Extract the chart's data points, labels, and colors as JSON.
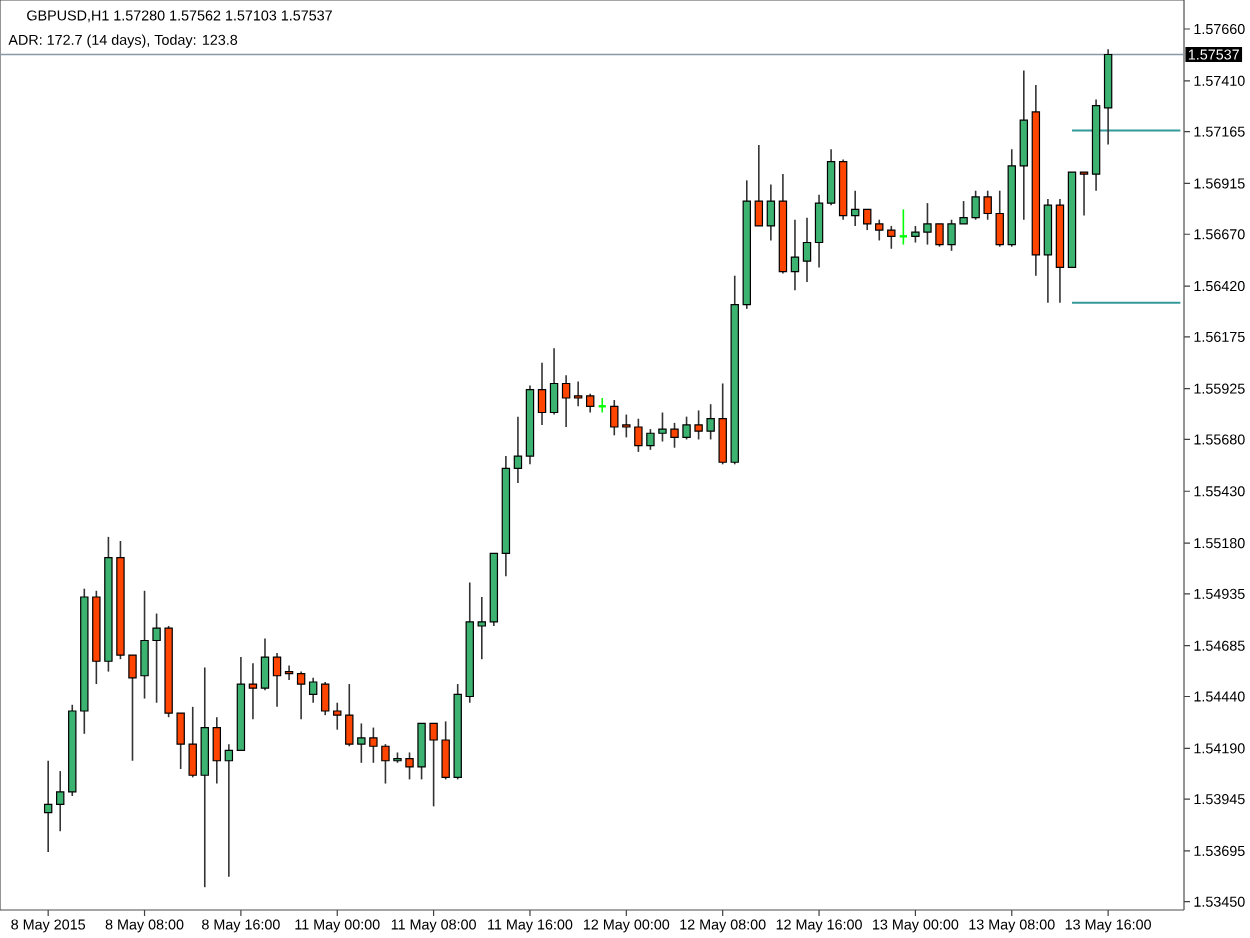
{
  "chart_data": {
    "type": "candlestick",
    "title": "GBPUSD,H1 1.57280 1.57562 1.57103 1.57537",
    "annotations": [
      "ADR: 172.7 (14 days), Today: 123.8"
    ],
    "categories": [
      "8 May 2015",
      null,
      null,
      null,
      null,
      null,
      null,
      null,
      "8 May 08:00",
      null,
      null,
      null,
      null,
      null,
      null,
      null,
      "8 May 16:00",
      null,
      null,
      null,
      null,
      null,
      null,
      null,
      "11 May 00:00",
      null,
      null,
      null,
      null,
      null,
      null,
      null,
      "11 May 08:00",
      null,
      null,
      null,
      null,
      null,
      null,
      null,
      "11 May 16:00",
      null,
      null,
      null,
      null,
      null,
      null,
      null,
      "12 May 00:00",
      null,
      null,
      null,
      null,
      null,
      null,
      null,
      "12 May 08:00",
      null,
      null,
      null,
      null,
      null,
      null,
      null,
      "12 May 16:00",
      null,
      null,
      null,
      null,
      null,
      null,
      null,
      "13 May 00:00",
      null,
      null,
      null,
      null,
      null,
      null,
      null,
      "13 May 08:00",
      null,
      null,
      null,
      null,
      null,
      null,
      null,
      "13 May 16:00",
      null,
      null,
      null,
      null,
      null,
      null
    ],
    "ohlc": [
      [
        1.5388,
        1.5413,
        1.5369,
        1.5392
      ],
      [
        1.5392,
        1.5408,
        1.5379,
        1.5398
      ],
      [
        1.5398,
        1.544,
        1.5396,
        1.5437
      ],
      [
        1.5437,
        1.5496,
        1.5426,
        1.5492
      ],
      [
        1.5492,
        1.5495,
        1.545,
        1.5461
      ],
      [
        1.5461,
        1.5521,
        1.5456,
        1.5511
      ],
      [
        1.5511,
        1.5519,
        1.5462,
        1.5464
      ],
      [
        1.5464,
        1.5464,
        1.5413,
        1.5453
      ],
      [
        1.5454,
        1.5495,
        1.5443,
        1.5471
      ],
      [
        1.5471,
        1.5484,
        1.5441,
        1.5477
      ],
      [
        1.5477,
        1.5478,
        1.5434,
        1.5436
      ],
      [
        1.5436,
        1.5436,
        1.5409,
        1.5421
      ],
      [
        1.5421,
        1.5439,
        1.5405,
        1.5406
      ],
      [
        1.5406,
        1.5458,
        1.5352,
        1.5429
      ],
      [
        1.5429,
        1.5434,
        1.5402,
        1.5413
      ],
      [
        1.5413,
        1.5421,
        1.5357,
        1.5418
      ],
      [
        1.5418,
        1.5463,
        1.5418,
        1.545
      ],
      [
        1.545,
        1.546,
        1.5433,
        1.5448
      ],
      [
        1.5448,
        1.5472,
        1.5447,
        1.5463
      ],
      [
        1.5463,
        1.5465,
        1.5439,
        1.5454
      ],
      [
        1.5456,
        1.5459,
        1.5452,
        1.5455
      ],
      [
        1.5455,
        1.5456,
        1.5433,
        1.545
      ],
      [
        1.5445,
        1.5453,
        1.5441,
        1.5451
      ],
      [
        1.545,
        1.5451,
        1.5435,
        1.5437
      ],
      [
        1.5437,
        1.5441,
        1.5428,
        1.5435
      ],
      [
        1.5435,
        1.545,
        1.542,
        1.5421
      ],
      [
        1.5421,
        1.5431,
        1.5412,
        1.5424
      ],
      [
        1.5424,
        1.5429,
        1.5412,
        1.542
      ],
      [
        1.542,
        1.5421,
        1.5402,
        1.5413
      ],
      [
        1.5413,
        1.5417,
        1.5412,
        1.5414
      ],
      [
        1.5414,
        1.5417,
        1.5404,
        1.541
      ],
      [
        1.541,
        1.5431,
        1.5404,
        1.5431
      ],
      [
        1.5431,
        1.5431,
        1.5391,
        1.5423
      ],
      [
        1.5423,
        1.5432,
        1.5404,
        1.5405
      ],
      [
        1.5405,
        1.545,
        1.5404,
        1.5445
      ],
      [
        1.5444,
        1.5499,
        1.5441,
        1.548
      ],
      [
        1.5478,
        1.5492,
        1.5462,
        1.548
      ],
      [
        1.548,
        1.5513,
        1.5478,
        1.5513
      ],
      [
        1.5513,
        1.556,
        1.5502,
        1.5554
      ],
      [
        1.5554,
        1.5579,
        1.5547,
        1.556
      ],
      [
        1.556,
        1.5594,
        1.5556,
        1.5592
      ],
      [
        1.5592,
        1.5605,
        1.5575,
        1.5581
      ],
      [
        1.5581,
        1.5612,
        1.558,
        1.5595
      ],
      [
        1.5595,
        1.5599,
        1.5574,
        1.5588
      ],
      [
        1.5589,
        1.5596,
        1.5584,
        1.5588
      ],
      [
        1.5589,
        1.559,
        1.5581,
        1.5584
      ],
      [
        1.5584,
        1.5588,
        1.5581,
        1.5584
      ],
      [
        1.5584,
        1.5587,
        1.557,
        1.5574
      ],
      [
        1.5575,
        1.558,
        1.5569,
        1.5574
      ],
      [
        1.5574,
        1.5578,
        1.5562,
        1.5565
      ],
      [
        1.5565,
        1.5573,
        1.5563,
        1.5571
      ],
      [
        1.5571,
        1.5581,
        1.5567,
        1.5573
      ],
      [
        1.5573,
        1.5576,
        1.5564,
        1.5569
      ],
      [
        1.5569,
        1.5579,
        1.5568,
        1.5575
      ],
      [
        1.5575,
        1.5582,
        1.5568,
        1.5572
      ],
      [
        1.5572,
        1.5585,
        1.5568,
        1.5578
      ],
      [
        1.5578,
        1.5595,
        1.5556,
        1.5557
      ],
      [
        1.5557,
        1.5647,
        1.5556,
        1.5633
      ],
      [
        1.5633,
        1.5693,
        1.5631,
        1.5683
      ],
      [
        1.5683,
        1.571,
        1.5671,
        1.5671
      ],
      [
        1.5671,
        1.5691,
        1.5664,
        1.5683
      ],
      [
        1.5683,
        1.5696,
        1.5648,
        1.5649
      ],
      [
        1.5649,
        1.5674,
        1.564,
        1.5656
      ],
      [
        1.5654,
        1.5675,
        1.5644,
        1.5663
      ],
      [
        1.5663,
        1.5686,
        1.5651,
        1.5682
      ],
      [
        1.5682,
        1.5708,
        1.5681,
        1.5702
      ],
      [
        1.5702,
        1.5703,
        1.5674,
        1.5676
      ],
      [
        1.5676,
        1.5688,
        1.5671,
        1.5679
      ],
      [
        1.5679,
        1.5679,
        1.5669,
        1.5672
      ],
      [
        1.5672,
        1.5674,
        1.5664,
        1.5669
      ],
      [
        1.5669,
        1.5671,
        1.566,
        1.5666
      ],
      [
        1.5666,
        1.5679,
        1.5662,
        1.5666
      ],
      [
        1.5666,
        1.5671,
        1.5663,
        1.5668
      ],
      [
        1.5668,
        1.5682,
        1.5662,
        1.5672
      ],
      [
        1.5672,
        1.5672,
        1.5661,
        1.5662
      ],
      [
        1.5662,
        1.5674,
        1.5659,
        1.5672
      ],
      [
        1.5672,
        1.5683,
        1.5672,
        1.5675
      ],
      [
        1.5675,
        1.5688,
        1.5674,
        1.5685
      ],
      [
        1.5685,
        1.5688,
        1.5674,
        1.5677
      ],
      [
        1.5677,
        1.5688,
        1.5661,
        1.5662
      ],
      [
        1.5662,
        1.5708,
        1.5661,
        1.57
      ],
      [
        1.57,
        1.5746,
        1.5674,
        1.5722
      ],
      [
        1.5726,
        1.5739,
        1.5647,
        1.5657
      ],
      [
        1.5657,
        1.5684,
        1.5634,
        1.5681
      ],
      [
        1.5681,
        1.5684,
        1.5634,
        1.5651
      ],
      [
        1.5651,
        1.5697,
        1.5651,
        1.5697
      ],
      [
        1.5697,
        1.5697,
        1.5676,
        1.5696
      ],
      [
        1.5696,
        1.5732,
        1.5688,
        1.5729
      ],
      [
        1.5728,
        1.57562,
        1.57103,
        1.57537
      ],
      null,
      null,
      null,
      null,
      null,
      null
    ],
    "colors": [
      "#3cb371",
      "#3cb371",
      "#3cb371",
      "#3cb371",
      "#ff4500",
      "#3cb371",
      "#ff4500",
      "#ff4500",
      "#3cb371",
      "#3cb371",
      "#ff4500",
      "#ff4500",
      "#ff4500",
      "#3cb371",
      "#ff4500",
      "#3cb371",
      "#3cb371",
      "#ff4500",
      "#3cb371",
      "#ff4500",
      "#ff4500",
      "#ff4500",
      "#3cb371",
      "#ff4500",
      "#ff4500",
      "#ff4500",
      "#3cb371",
      "#ff4500",
      "#ff4500",
      "#3cb371",
      "#ff4500",
      "#3cb371",
      "#ff4500",
      "#ff4500",
      "#3cb371",
      "#3cb371",
      "#3cb371",
      "#3cb371",
      "#3cb371",
      "#3cb371",
      "#3cb371",
      "#ff4500",
      "#3cb371",
      "#ff4500",
      "#ff4500",
      "#ff4500",
      "#00ff00",
      "#ff4500",
      "#ff4500",
      "#ff4500",
      "#3cb371",
      "#3cb371",
      "#ff4500",
      "#3cb371",
      "#ff4500",
      "#3cb371",
      "#ff4500",
      "#3cb371",
      "#3cb371",
      "#ff4500",
      "#3cb371",
      "#ff4500",
      "#3cb371",
      "#3cb371",
      "#3cb371",
      "#3cb371",
      "#ff4500",
      "#3cb371",
      "#ff4500",
      "#ff4500",
      "#ff4500",
      "#00ff00",
      "#3cb371",
      "#3cb371",
      "#ff4500",
      "#3cb371",
      "#3cb371",
      "#3cb371",
      "#ff4500",
      "#ff4500",
      "#3cb371",
      "#3cb371",
      "#ff4500",
      "#3cb371",
      "#ff4500",
      "#3cb371",
      "#ff4500",
      "#3cb371",
      "#3cb371",
      null,
      null,
      null,
      null,
      null,
      null
    ],
    "series": [
      {
        "type": "line",
        "color": "#339999",
        "values": [
          null,
          null,
          null,
          null,
          null,
          null,
          null,
          null,
          null,
          null,
          null,
          null,
          null,
          null,
          null,
          null,
          null,
          null,
          null,
          null,
          null,
          null,
          null,
          null,
          null,
          null,
          null,
          null,
          null,
          null,
          null,
          null,
          null,
          null,
          null,
          null,
          null,
          null,
          null,
          null,
          null,
          null,
          null,
          null,
          null,
          null,
          null,
          null,
          null,
          null,
          null,
          null,
          null,
          null,
          null,
          null,
          null,
          null,
          null,
          null,
          null,
          null,
          null,
          null,
          null,
          null,
          null,
          null,
          null,
          null,
          null,
          null,
          null,
          null,
          null,
          null,
          null,
          null,
          null,
          null,
          null,
          null,
          null,
          null,
          null,
          1.5717,
          1.5717,
          1.5717,
          1.5717,
          1.5717,
          1.5717,
          1.5717,
          1.5717,
          1.5717,
          1.5717
        ]
      },
      {
        "type": "line",
        "color": "#339999",
        "values": [
          null,
          null,
          null,
          null,
          null,
          null,
          null,
          null,
          null,
          null,
          null,
          null,
          null,
          null,
          null,
          null,
          null,
          null,
          null,
          null,
          null,
          null,
          null,
          null,
          null,
          null,
          null,
          null,
          null,
          null,
          null,
          null,
          null,
          null,
          null,
          null,
          null,
          null,
          null,
          null,
          null,
          null,
          null,
          null,
          null,
          null,
          null,
          null,
          null,
          null,
          null,
          null,
          null,
          null,
          null,
          null,
          null,
          null,
          null,
          null,
          null,
          null,
          null,
          null,
          null,
          null,
          null,
          null,
          null,
          null,
          null,
          null,
          null,
          null,
          null,
          null,
          null,
          null,
          null,
          null,
          null,
          null,
          null,
          null,
          null,
          1.5634,
          1.5634,
          1.5634,
          1.5634,
          1.5634,
          1.5634,
          1.5634,
          1.5634,
          1.5634,
          1.5634
        ]
      }
    ],
    "ref_lines": [
      {
        "axis": "y",
        "value": 1.57537,
        "label": "1.57537",
        "color": "#8899aa"
      }
    ],
    "ylim": [
      1.5341,
      1.578
    ],
    "yticks": [
      {
        "value": 1.5766,
        "label": "1.57660"
      },
      {
        "value": 1.5741,
        "label": "1.57410"
      },
      {
        "value": 1.57165,
        "label": "1.57165"
      },
      {
        "value": 1.56915,
        "label": "1.56915"
      },
      {
        "value": 1.5667,
        "label": "1.56670"
      },
      {
        "value": 1.5642,
        "label": "1.56420"
      },
      {
        "value": 1.56175,
        "label": "1.56175"
      },
      {
        "value": 1.55925,
        "label": "1.55925"
      },
      {
        "value": 1.5568,
        "label": "1.55680"
      },
      {
        "value": 1.5543,
        "label": "1.55430"
      },
      {
        "value": 1.5518,
        "label": "1.55180"
      },
      {
        "value": 1.54935,
        "label": "1.54935"
      },
      {
        "value": 1.54685,
        "label": "1.54685"
      },
      {
        "value": 1.5444,
        "label": "1.54440"
      },
      {
        "value": 1.5419,
        "label": "1.54190"
      },
      {
        "value": 1.53945,
        "label": "1.53945"
      },
      {
        "value": 1.53695,
        "label": "1.53695"
      },
      {
        "value": 1.5345,
        "label": "1.53450"
      }
    ]
  }
}
